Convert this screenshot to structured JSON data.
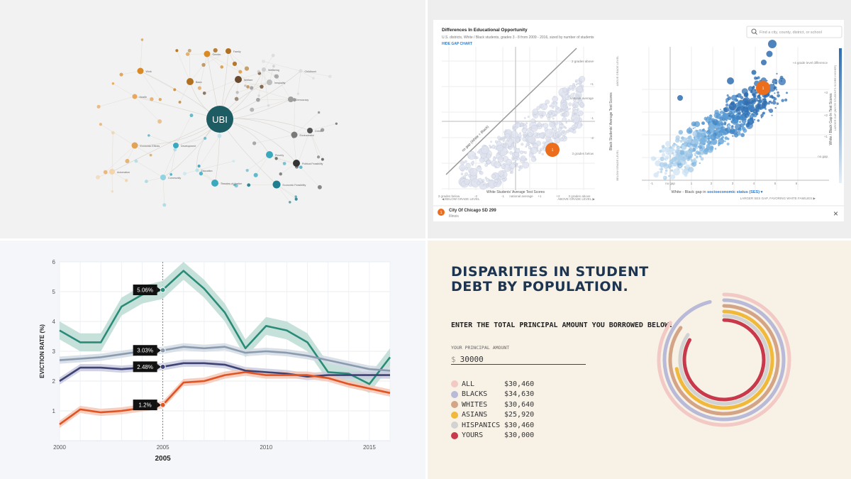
{
  "network": {
    "center_label": "UBI",
    "nodes": [
      {
        "label": "Gender",
        "color": "#d98a25"
      },
      {
        "label": "Family",
        "color": "#b0701f"
      },
      {
        "label": "Work",
        "color": "#d98a25"
      },
      {
        "label": "Welfare",
        "color": "#6a4a2e"
      },
      {
        "label": "Basic",
        "color": "#b0701f"
      },
      {
        "label": "Health",
        "color": "#e8a85c"
      },
      {
        "label": "Wellbeing",
        "color": "#cfcfcf"
      },
      {
        "label": "Inequality",
        "color": "#bdbdbd"
      },
      {
        "label": "Childhood",
        "color": "#dddddd"
      },
      {
        "label": "Democracy",
        "color": "#9e9e9e"
      },
      {
        "label": "Environment",
        "color": "#7a7a7a"
      },
      {
        "label": "Crime",
        "color": "#555555"
      },
      {
        "label": "Poverty",
        "color": "#3aa8bf"
      },
      {
        "label": "Political Feasibility",
        "color": "#333333"
      },
      {
        "label": "Economic Effects",
        "color": "#e3a357"
      },
      {
        "label": "Development",
        "color": "#3aa8bf"
      },
      {
        "label": "Automation",
        "color": "#f3d4ad"
      },
      {
        "label": "Community",
        "color": "#8fd3e0"
      },
      {
        "label": "Education",
        "color": "#b8e3ec"
      },
      {
        "label": "Theories of Justice",
        "color": "#3aa8bf"
      },
      {
        "label": "Economic Feasibility",
        "color": "#1f7f90"
      }
    ]
  },
  "scatter": {
    "title": "Differences In Educational Opportunity",
    "subtitle": "U.S. districts, White / Black students, grades 3 - 8 from 2009 - 2016, sized by number of students",
    "hide_gap_label": "HIDE GAP CHART",
    "search_placeholder": "Find a city, county, district, or school",
    "left_xlabel": "White Students' Average Test Scores",
    "left_ylabel": "Black Students' Average Test Scores",
    "diag_label": "no gap (White = Black)",
    "left_x_ticks": [
      "3 grades below",
      "-2",
      "-1",
      "national average",
      "+1",
      "+2",
      "3 grades above"
    ],
    "left_y_ticks": [
      "2 grades above",
      "+1",
      "national average",
      "-1",
      "-2",
      "3 grades below"
    ],
    "above_grade_level": "ABOVE GRADE LEVEL",
    "below_grade_level": "BELOW GRADE LEVEL",
    "left_nav_left": "◀ BELOW GRADE LEVEL",
    "left_nav_right": "ABOVE GRADE LEVEL ▶",
    "right_xlabel_prefix": "White - Black gap in ",
    "right_xlabel_link": "socioeconomic status (SES)",
    "right_ylabel": "White / Black Gap In Test Scores",
    "right_ylabel_sub": "LARGER GAP (WHITE STUDENTS SCORE HIGHER)",
    "right_x_ticks": [
      "-1",
      "no gap",
      "1",
      "2",
      "3",
      "4",
      "5",
      "6"
    ],
    "right_y_ticks": [
      "+4 grade level difference",
      "+3",
      "+2",
      "+1",
      "no gap"
    ],
    "right_nav": "LARGER SES GAP, FAVORING WHITE FAMILIES ▶",
    "marker_label": "1",
    "selected_name": "City Of Chicago SD 299",
    "selected_state": "Illinois",
    "close_label": "×"
  },
  "debt": {
    "title": "Disparities in Student Debt by Population.",
    "prompt": "Enter the total principal amount you borrowed below:",
    "field_label": "YOUR PRINCIPAL AMOUNT",
    "currency": "$",
    "field_value": "30000",
    "rows": [
      {
        "name": "ALL",
        "value": "$30,460",
        "amount": 30460,
        "color": "#f2c9c4"
      },
      {
        "name": "BLACKS",
        "value": "$34,630",
        "amount": 34630,
        "color": "#b9b9d8"
      },
      {
        "name": "WHITES",
        "value": "$30,640",
        "amount": 30640,
        "color": "#d4a487"
      },
      {
        "name": "ASIANS",
        "value": "$25,920",
        "amount": 25920,
        "color": "#f0b93c"
      },
      {
        "name": "HISPANICS",
        "value": "$30,460",
        "amount": 30460,
        "color": "#d2d2d2"
      },
      {
        "name": "YOURS",
        "value": "$30,000",
        "amount": 30000,
        "color": "#c83a4b"
      }
    ]
  },
  "chart_data": [
    {
      "type": "line",
      "ylabel": "EVICTION RATE (%)",
      "xlabel": "2005",
      "x": [
        2000,
        2001,
        2002,
        2003,
        2004,
        2005,
        2006,
        2007,
        2008,
        2009,
        2010,
        2011,
        2012,
        2013,
        2014,
        2015,
        2016
      ],
      "xlim": [
        2000,
        2016
      ],
      "ylim": [
        0,
        6
      ],
      "x_ticks": [
        2000,
        2005,
        2010,
        2015
      ],
      "y_ticks": [
        1,
        2,
        3,
        4,
        5,
        6
      ],
      "grid": true,
      "highlight_x": 2005,
      "series": [
        {
          "color": "#2a8b78",
          "band": "#bcdcd4",
          "values": [
            3.7,
            3.3,
            3.3,
            4.5,
            4.9,
            5.06,
            5.7,
            5.1,
            4.3,
            3.1,
            3.85,
            3.7,
            3.3,
            2.3,
            2.25,
            1.9,
            2.8
          ],
          "label": "5.06%"
        },
        {
          "color": "#8a9bb0",
          "band": "#d2dae4",
          "values": [
            2.7,
            2.75,
            2.8,
            2.9,
            3.0,
            3.03,
            3.15,
            3.1,
            3.15,
            2.95,
            3.0,
            2.95,
            2.85,
            2.7,
            2.55,
            2.4,
            2.35
          ],
          "label": "3.03%"
        },
        {
          "color": "#3e4373",
          "band": "#c9cbe0",
          "values": [
            2.0,
            2.45,
            2.45,
            2.4,
            2.45,
            2.48,
            2.6,
            2.6,
            2.55,
            2.35,
            2.3,
            2.25,
            2.15,
            2.2,
            2.2,
            2.2,
            2.2
          ],
          "label": "2.48%"
        },
        {
          "color": "#e05424",
          "band": "#f5c7b6",
          "values": [
            0.55,
            1.05,
            0.95,
            1.0,
            1.1,
            1.2,
            1.95,
            2.0,
            2.2,
            2.3,
            2.2,
            2.2,
            2.2,
            2.1,
            1.9,
            1.75,
            1.6
          ],
          "label": "1.2%"
        }
      ]
    },
    {
      "type": "scatter",
      "title": "Differences In Educational Opportunity",
      "highlight": {
        "label": "1",
        "name": "City Of Chicago SD 299"
      }
    }
  ]
}
